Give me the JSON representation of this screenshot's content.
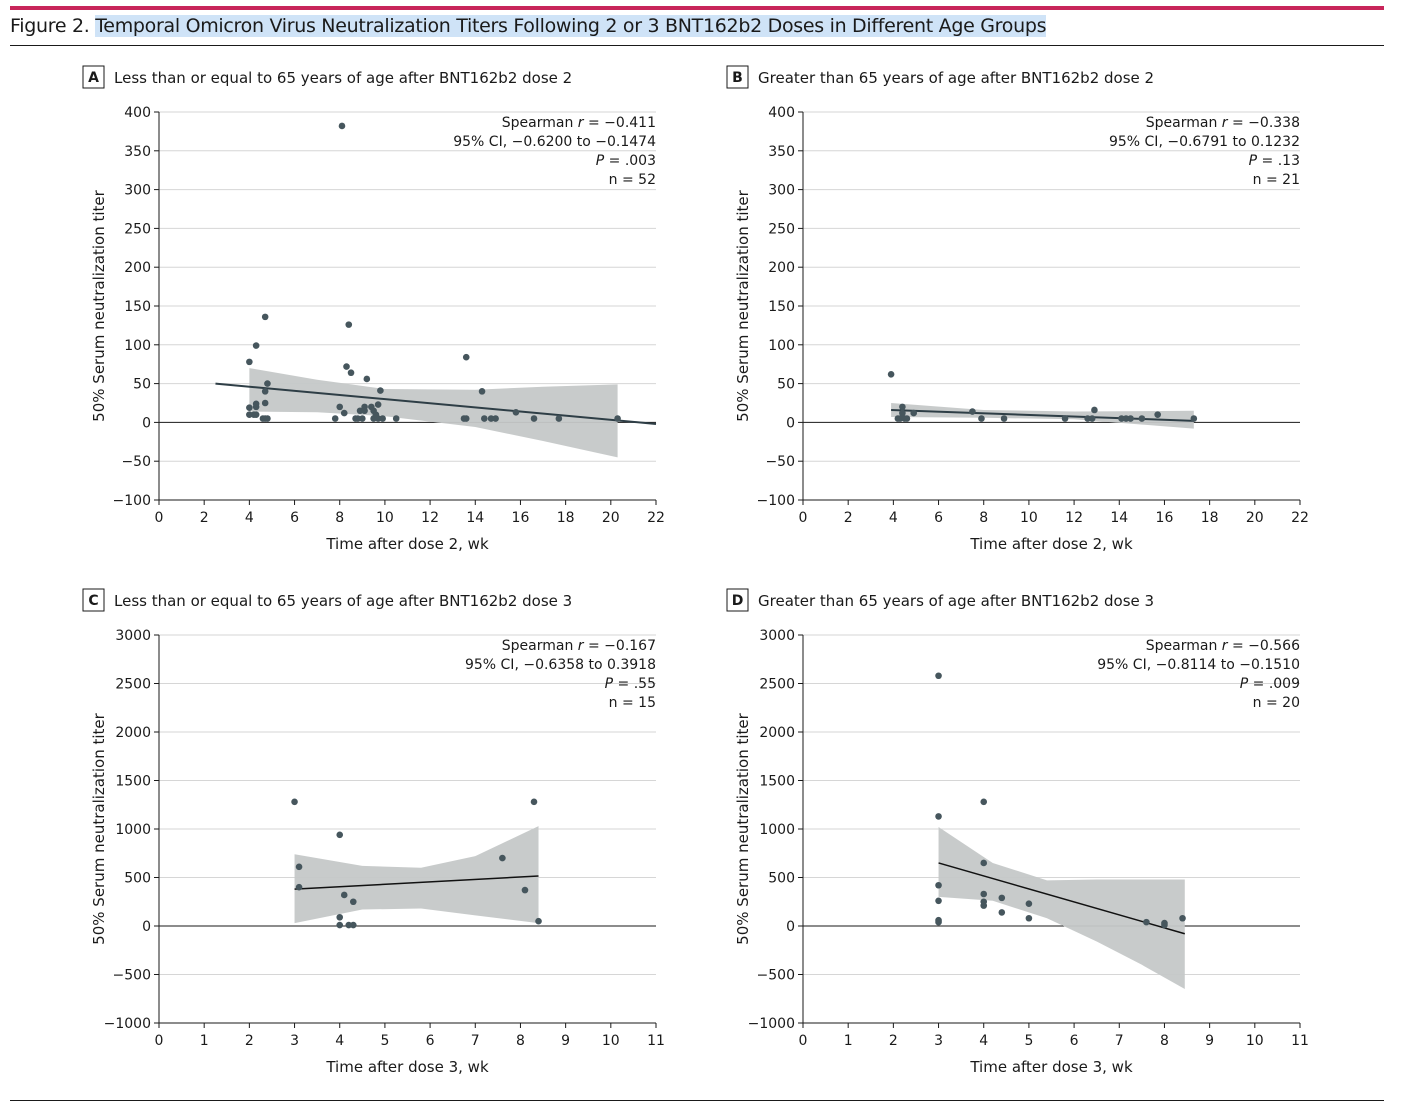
{
  "figure": {
    "label": "Figure 2.",
    "title": "Temporal Omicron Virus Neutralization Titers Following 2 or 3 BNT162b2 Doses in Different Age Groups"
  },
  "colors": {
    "accent_rule": "#c8255a",
    "highlight": "#cfe3f7",
    "points": "#46565d",
    "band": "#c5c8c8",
    "gridline": "#d6d6d6"
  },
  "chart_data": [
    {
      "type": "scatter",
      "panel": "A",
      "title": "Less than or equal to 65 years of age after BNT162b2 dose 2",
      "xlabel": "Time after dose 2, wk",
      "ylabel": "50% Serum neutralization titer",
      "xlim": [
        0,
        22
      ],
      "ylim": [
        -100,
        400
      ],
      "xticks": [
        0,
        2,
        4,
        6,
        8,
        10,
        12,
        14,
        16,
        18,
        20,
        22
      ],
      "yticks": [
        -100,
        -50,
        0,
        50,
        100,
        150,
        200,
        250,
        300,
        350,
        400
      ],
      "ytick_labels": [
        "−100",
        "−50",
        "0",
        "50",
        "100",
        "150",
        "200",
        "250",
        "300",
        "350",
        "400"
      ],
      "grid": true,
      "stats": {
        "r_prefix": "Spearman ",
        "r_italic": "r",
        "r_value": " = −0.411",
        "ci": "95% CI, −0.6200 to −0.1474",
        "p_italic": "P",
        "p_value": " = .003",
        "n": "n = 52"
      },
      "points": [
        [
          4.0,
          78
        ],
        [
          4.0,
          19
        ],
        [
          4.0,
          10
        ],
        [
          4.2,
          10
        ],
        [
          4.3,
          99
        ],
        [
          4.3,
          24
        ],
        [
          4.3,
          20
        ],
        [
          4.3,
          10
        ],
        [
          4.6,
          5
        ],
        [
          4.7,
          5
        ],
        [
          4.7,
          40
        ],
        [
          4.7,
          25
        ],
        [
          4.7,
          136
        ],
        [
          4.8,
          5
        ],
        [
          4.8,
          50
        ],
        [
          7.8,
          5
        ],
        [
          8.0,
          20
        ],
        [
          8.2,
          12
        ],
        [
          8.1,
          382
        ],
        [
          8.3,
          72
        ],
        [
          8.4,
          126
        ],
        [
          8.5,
          64
        ],
        [
          8.7,
          5
        ],
        [
          8.8,
          5
        ],
        [
          8.9,
          15
        ],
        [
          9.0,
          5
        ],
        [
          9.1,
          20
        ],
        [
          9.1,
          15
        ],
        [
          9.2,
          56
        ],
        [
          9.4,
          20
        ],
        [
          9.5,
          5
        ],
        [
          9.5,
          15
        ],
        [
          9.6,
          10
        ],
        [
          9.7,
          5
        ],
        [
          9.7,
          23
        ],
        [
          9.8,
          41
        ],
        [
          9.9,
          5
        ],
        [
          10.5,
          5
        ],
        [
          13.5,
          5
        ],
        [
          13.6,
          5
        ],
        [
          13.6,
          84
        ],
        [
          14.3,
          40
        ],
        [
          14.4,
          5
        ],
        [
          14.7,
          5
        ],
        [
          14.9,
          5
        ],
        [
          15.8,
          13
        ],
        [
          16.6,
          5
        ],
        [
          17.7,
          5
        ],
        [
          20.3,
          5
        ]
      ],
      "fit": {
        "x": [
          2.5,
          22
        ],
        "y": [
          50,
          -2
        ]
      },
      "band": {
        "x": [
          4.0,
          7,
          10,
          14,
          17,
          20.3
        ],
        "upper": [
          70,
          55,
          43,
          42,
          46,
          49
        ],
        "lower": [
          14,
          13,
          8,
          -6,
          -24,
          -45
        ]
      }
    },
    {
      "type": "scatter",
      "panel": "B",
      "title": "Greater than 65 years of age after BNT162b2 dose 2",
      "xlabel": "Time after dose 2, wk",
      "ylabel": "50% Serum neutralization titer",
      "xlim": [
        0,
        22
      ],
      "ylim": [
        -100,
        400
      ],
      "xticks": [
        0,
        2,
        4,
        6,
        8,
        10,
        12,
        14,
        16,
        18,
        20,
        22
      ],
      "yticks": [
        -100,
        -50,
        0,
        50,
        100,
        150,
        200,
        250,
        300,
        350,
        400
      ],
      "ytick_labels": [
        "−100",
        "−50",
        "0",
        "50",
        "100",
        "150",
        "200",
        "250",
        "300",
        "350",
        "400"
      ],
      "grid": true,
      "stats": {
        "r_prefix": "Spearman ",
        "r_italic": "r",
        "r_value": " = −0.338",
        "ci": "95% CI, −0.6791 to 0.1232",
        "p_italic": "P",
        "p_value": " = .13",
        "n": "n = 21"
      },
      "points": [
        [
          3.9,
          62
        ],
        [
          4.2,
          5
        ],
        [
          4.3,
          5
        ],
        [
          4.4,
          20
        ],
        [
          4.4,
          12
        ],
        [
          4.5,
          5
        ],
        [
          4.6,
          5
        ],
        [
          4.9,
          12
        ],
        [
          7.5,
          14
        ],
        [
          7.9,
          5
        ],
        [
          8.9,
          5
        ],
        [
          11.6,
          5
        ],
        [
          12.6,
          5
        ],
        [
          12.8,
          5
        ],
        [
          12.9,
          16
        ],
        [
          14.1,
          5
        ],
        [
          14.3,
          5
        ],
        [
          14.5,
          5
        ],
        [
          15.0,
          5
        ],
        [
          15.7,
          10
        ],
        [
          17.3,
          5
        ]
      ],
      "fit": {
        "x": [
          3.9,
          17.3
        ],
        "y": [
          16,
          2
        ]
      },
      "band": {
        "x": [
          3.9,
          8,
          12,
          17.3
        ],
        "upper": [
          25,
          16,
          14,
          15
        ],
        "lower": [
          7,
          6,
          4,
          -8
        ]
      }
    },
    {
      "type": "scatter",
      "panel": "C",
      "title": "Less than or equal to 65 years of age after BNT162b2 dose 3",
      "xlabel": "Time after dose 3, wk",
      "ylabel": "50% Serum neutralization titer",
      "xlim": [
        0,
        11
      ],
      "ylim": [
        -1000,
        3000
      ],
      "xticks": [
        0,
        1,
        2,
        3,
        4,
        5,
        6,
        7,
        8,
        9,
        10,
        11
      ],
      "yticks": [
        -1000,
        -500,
        0,
        500,
        1000,
        1500,
        2000,
        2500,
        3000
      ],
      "ytick_labels": [
        "−1000",
        "−500",
        "0",
        "500",
        "1000",
        "1500",
        "2000",
        "2500",
        "3000"
      ],
      "grid": true,
      "stats": {
        "r_prefix": "Spearman ",
        "r_italic": "r",
        "r_value": " = −0.167",
        "ci": "95% CI, −0.6358 to 0.3918",
        "p_italic": "P",
        "p_value": " = .55",
        "n": "n = 15"
      },
      "points": [
        [
          3.0,
          1280
        ],
        [
          3.1,
          610
        ],
        [
          3.1,
          400
        ],
        [
          4.0,
          940
        ],
        [
          4.0,
          90
        ],
        [
          4.0,
          10
        ],
        [
          4.1,
          320
        ],
        [
          4.2,
          10
        ],
        [
          4.3,
          250
        ],
        [
          4.3,
          10
        ],
        [
          7.6,
          700
        ],
        [
          8.1,
          370
        ],
        [
          8.3,
          1280
        ],
        [
          8.4,
          50
        ]
      ],
      "fit": {
        "x": [
          3.0,
          8.4
        ],
        "y": [
          380,
          515
        ]
      },
      "band": {
        "x": [
          3.0,
          4.5,
          5.8,
          7.0,
          8.4
        ],
        "upper": [
          740,
          620,
          600,
          720,
          1030
        ],
        "lower": [
          30,
          170,
          180,
          110,
          30
        ]
      }
    },
    {
      "type": "scatter",
      "panel": "D",
      "title": "Greater than 65 years of age after BNT162b2 dose 3",
      "xlabel": "Time after dose 3, wk",
      "ylabel": "50% Serum neutralization titer",
      "xlim": [
        0,
        11
      ],
      "ylim": [
        -1000,
        3000
      ],
      "xticks": [
        0,
        1,
        2,
        3,
        4,
        5,
        6,
        7,
        8,
        9,
        10,
        11
      ],
      "yticks": [
        -1000,
        -500,
        0,
        500,
        1000,
        1500,
        2000,
        2500,
        3000
      ],
      "ytick_labels": [
        "−1000",
        "−500",
        "0",
        "500",
        "1000",
        "1500",
        "2000",
        "2500",
        "3000"
      ],
      "grid": true,
      "stats": {
        "r_prefix": "Spearman ",
        "r_italic": "r",
        "r_value": " = −0.566",
        "ci": "95% CI, −0.8114 to −0.1510",
        "p_italic": "P",
        "p_value": " = .009",
        "n": "n = 20"
      },
      "points": [
        [
          3.0,
          2580
        ],
        [
          3.0,
          1130
        ],
        [
          3.0,
          420
        ],
        [
          3.0,
          260
        ],
        [
          3.0,
          60
        ],
        [
          3.0,
          40
        ],
        [
          4.0,
          1280
        ],
        [
          4.0,
          650
        ],
        [
          4.0,
          330
        ],
        [
          4.0,
          250
        ],
        [
          4.0,
          210
        ],
        [
          4.4,
          290
        ],
        [
          4.4,
          140
        ],
        [
          5.0,
          230
        ],
        [
          5.0,
          80
        ],
        [
          7.6,
          40
        ],
        [
          8.0,
          10
        ],
        [
          8.0,
          30
        ],
        [
          8.4,
          80
        ]
      ],
      "fit": {
        "x": [
          3.0,
          8.45
        ],
        "y": [
          650,
          -80
        ]
      },
      "band": {
        "x": [
          3.0,
          4.2,
          5.4,
          6.5,
          7.5,
          8.45
        ],
        "upper": [
          1020,
          650,
          470,
          480,
          480,
          480
        ],
        "lower": [
          300,
          260,
          80,
          -160,
          -400,
          -650
        ]
      }
    }
  ]
}
